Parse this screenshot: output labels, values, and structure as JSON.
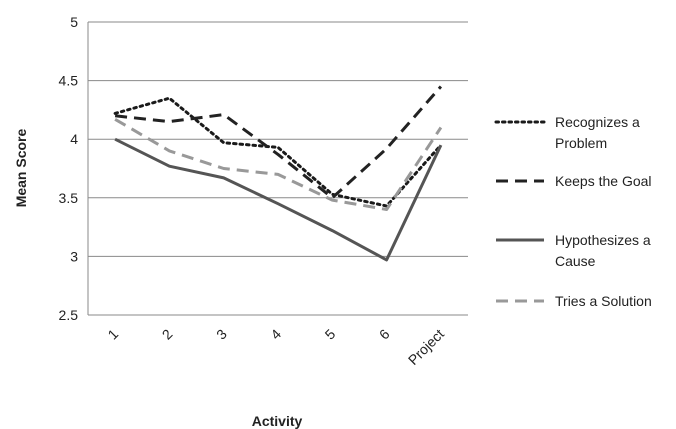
{
  "chart_data": {
    "type": "line",
    "title": "",
    "xlabel": "Activity",
    "ylabel": "Mean Score",
    "categories": [
      "1",
      "2",
      "3",
      "4",
      "5",
      "6",
      "Project"
    ],
    "ylim": [
      2.5,
      5
    ],
    "yticks": [
      "2.5",
      "3",
      "3.5",
      "4",
      "4.5",
      "5"
    ],
    "grid": "horizontal",
    "legend_position": "right",
    "series": [
      {
        "name": "Recognizes a Problem",
        "values": [
          4.22,
          4.35,
          3.97,
          3.93,
          3.53,
          3.43,
          3.95
        ],
        "color": "#1a1a1a",
        "style": "dotted",
        "legend_lines": [
          "Recognizes a",
          "Problem"
        ]
      },
      {
        "name": "Keeps the Goal",
        "values": [
          4.2,
          4.15,
          4.21,
          3.87,
          3.5,
          3.92,
          4.45
        ],
        "color": "#222222",
        "style": "dashed",
        "legend_lines": [
          "Keeps the Goal"
        ]
      },
      {
        "name": "Hypothesizes a Cause",
        "values": [
          4.0,
          3.77,
          3.67,
          3.45,
          3.22,
          2.97,
          3.95
        ],
        "color": "#555555",
        "style": "solid",
        "legend_lines": [
          "Hypothesizes a",
          "Cause"
        ]
      },
      {
        "name": "Tries a Solution",
        "values": [
          4.17,
          3.9,
          3.75,
          3.7,
          3.48,
          3.4,
          4.1
        ],
        "color": "#999999",
        "style": "dashed",
        "legend_lines": [
          "Tries a Solution"
        ]
      }
    ]
  }
}
